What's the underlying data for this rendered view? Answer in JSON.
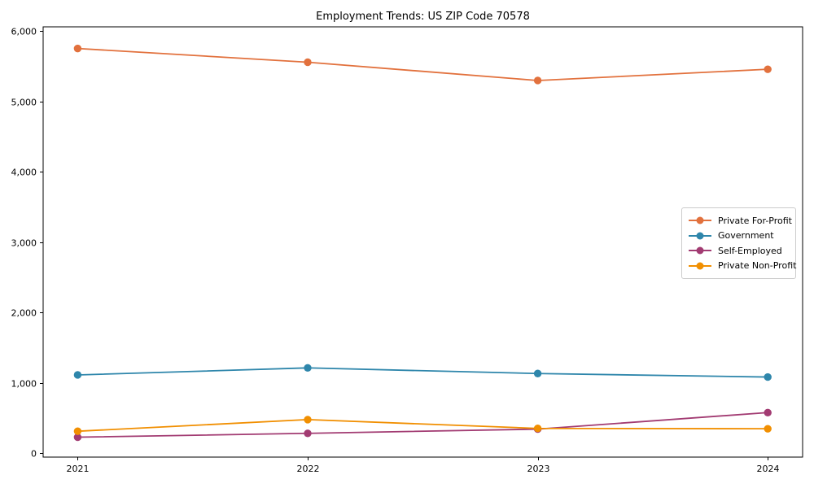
{
  "chart_data": {
    "type": "line",
    "title": "Employment Trends: US ZIP Code 70578",
    "xlabel": "",
    "ylabel": "",
    "x": [
      2021,
      2022,
      2023,
      2024
    ],
    "x_tick_labels": [
      "2021",
      "2022",
      "2023",
      "2024"
    ],
    "series": [
      {
        "name": "Private For-Profit",
        "color": "#E2713D",
        "values": [
          5750,
          5555,
          5295,
          5455
        ]
      },
      {
        "name": "Government",
        "color": "#2E86AB",
        "values": [
          1110,
          1210,
          1130,
          1080
        ]
      },
      {
        "name": "Self-Employed",
        "color": "#A23B72",
        "values": [
          225,
          280,
          340,
          575
        ]
      },
      {
        "name": "Private Non-Profit",
        "color": "#F18F01",
        "values": [
          310,
          475,
          350,
          345
        ]
      }
    ],
    "ylim": [
      0,
      6000
    ],
    "yticks": [
      0,
      1000,
      2000,
      3000,
      4000,
      5000,
      6000
    ],
    "ytick_labels": [
      "0",
      "1,000",
      "2,000",
      "3,000",
      "4,000",
      "5,000",
      "6,000"
    ],
    "grid": false,
    "legend_position": "center-right",
    "marker": "circle",
    "axis_color": "#000000",
    "background_color": "#ffffff"
  }
}
